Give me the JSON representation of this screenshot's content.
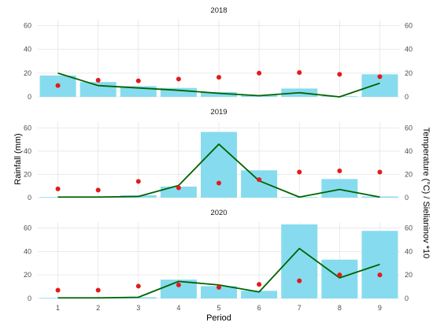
{
  "chart_data": {
    "type": "bar",
    "categories": [
      "1",
      "2",
      "3",
      "4",
      "5",
      "6",
      "7",
      "8",
      "9"
    ],
    "xlabel": "Period",
    "ylabel": "Rainfall (mm)",
    "y2label": "Temperature (°C) / Sielianinov *10",
    "ylim": [
      0,
      65
    ],
    "yticks": [
      "0",
      "20",
      "40",
      "60"
    ],
    "grid": true,
    "colors": {
      "bars": "#87dbef",
      "points": "#e31a1c",
      "line": "#006400"
    },
    "panels": [
      {
        "title": "2018",
        "rainfall": [
          18,
          12.5,
          9,
          7.5,
          4,
          1.5,
          7,
          0.5,
          19
        ],
        "temperature": [
          9.5,
          14,
          13.5,
          15,
          16.5,
          20,
          20.5,
          19,
          17
        ],
        "sielianinov_x10": [
          20,
          9.5,
          7.5,
          5.5,
          3,
          1,
          3.5,
          0,
          11.5
        ]
      },
      {
        "title": "2019",
        "rainfall": [
          0.5,
          0.5,
          2,
          9.5,
          56.5,
          23.5,
          0.5,
          16,
          1
        ],
        "temperature": [
          7.5,
          6.5,
          14,
          8.5,
          12.5,
          15.5,
          22,
          23,
          22
        ],
        "sielianinov_x10": [
          0.5,
          0.5,
          1,
          10.5,
          46,
          14.5,
          0.5,
          7,
          0.5
        ]
      },
      {
        "title": "2020",
        "rainfall": [
          0.5,
          0.5,
          1,
          16,
          10.5,
          6.5,
          63,
          33,
          57.5
        ],
        "temperature": [
          7,
          7,
          10.5,
          11.5,
          9.5,
          12,
          15,
          20,
          20
        ],
        "sielianinov_x10": [
          0.5,
          0.5,
          1,
          14.5,
          11.5,
          5.5,
          42.5,
          17.5,
          29
        ]
      }
    ]
  }
}
